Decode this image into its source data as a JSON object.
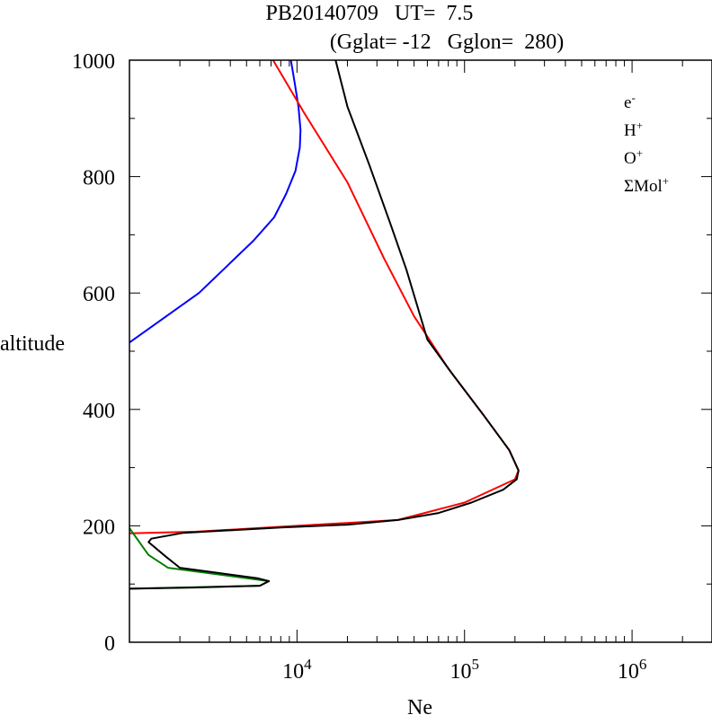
{
  "colors": {
    "electron": "#000000",
    "hydrogen": "#0000ff",
    "oxygen": "#ff0000",
    "molecular": "#008000"
  },
  "chart_data": {
    "type": "line",
    "title_line1": "PB20140709   UT=  7.5",
    "title_line2": "(Gglat= -12   Gglon=  280)",
    "xlabel": "Ne",
    "ylabel": "altitude",
    "x_scale": "log",
    "xlim": [
      1000,
      3000000
    ],
    "ylim": [
      0,
      1000
    ],
    "x_ticks": [
      {
        "base": "10",
        "exp": "4",
        "value": 10000
      },
      {
        "base": "10",
        "exp": "5",
        "value": 100000
      },
      {
        "base": "10",
        "exp": "6",
        "value": 1000000
      }
    ],
    "y_ticks": [
      {
        "label": "0",
        "value": 0
      },
      {
        "label": "200",
        "value": 200
      },
      {
        "label": "400",
        "value": 400
      },
      {
        "label": "600",
        "value": 600
      },
      {
        "label": "800",
        "value": 800
      },
      {
        "label": "1000",
        "value": 1000
      }
    ],
    "legend_position": "top-right",
    "legend": [
      {
        "base": "e",
        "sup": "-",
        "key": "electron"
      },
      {
        "base": "H",
        "sup": "+",
        "key": "hydrogen"
      },
      {
        "base": "O",
        "sup": "+",
        "key": "oxygen"
      },
      {
        "base": "ΣMol",
        "sup": "+",
        "key": "molecular"
      }
    ],
    "series": [
      {
        "key": "hydrogen",
        "points": [
          [
            1000,
            515
          ],
          [
            2600,
            600
          ],
          [
            5500,
            690
          ],
          [
            7300,
            730
          ],
          [
            8600,
            770
          ],
          [
            9800,
            810
          ],
          [
            10400,
            850
          ],
          [
            10500,
            880
          ],
          [
            10200,
            920
          ],
          [
            9700,
            960
          ],
          [
            9200,
            1000
          ]
        ]
      },
      {
        "key": "oxygen",
        "points": [
          [
            1000,
            187
          ],
          [
            2500,
            190
          ],
          [
            10000,
            200
          ],
          [
            40000,
            210
          ],
          [
            100000,
            240
          ],
          [
            200000,
            280
          ],
          [
            210000,
            295
          ],
          [
            185000,
            330
          ],
          [
            130000,
            390
          ],
          [
            80000,
            470
          ],
          [
            50000,
            560
          ],
          [
            33000,
            660
          ],
          [
            20000,
            790
          ],
          [
            11000,
            910
          ],
          [
            7200,
            1000
          ]
        ]
      },
      {
        "key": "molecular",
        "points": [
          [
            1000,
            92
          ],
          [
            6000,
            97
          ],
          [
            6800,
            105
          ],
          [
            1700,
            128
          ],
          [
            1300,
            150
          ],
          [
            1000,
            196
          ]
        ]
      },
      {
        "key": "electron",
        "points": [
          [
            1000,
            92
          ],
          [
            2400,
            94
          ],
          [
            6000,
            97
          ],
          [
            6800,
            105
          ],
          [
            5800,
            110
          ],
          [
            2000,
            128
          ],
          [
            1650,
            147
          ],
          [
            1300,
            172
          ],
          [
            1350,
            178
          ],
          [
            2100,
            188
          ],
          [
            8000,
            197
          ],
          [
            20000,
            202
          ],
          [
            40000,
            210
          ],
          [
            70000,
            222
          ],
          [
            110000,
            240
          ],
          [
            170000,
            262
          ],
          [
            205000,
            280
          ],
          [
            210000,
            295
          ],
          [
            185000,
            330
          ],
          [
            130000,
            390
          ],
          [
            85000,
            460
          ],
          [
            60000,
            520
          ],
          [
            45000,
            640
          ],
          [
            36000,
            720
          ],
          [
            27000,
            820
          ],
          [
            20000,
            920
          ],
          [
            17000,
            1000
          ]
        ]
      }
    ]
  }
}
